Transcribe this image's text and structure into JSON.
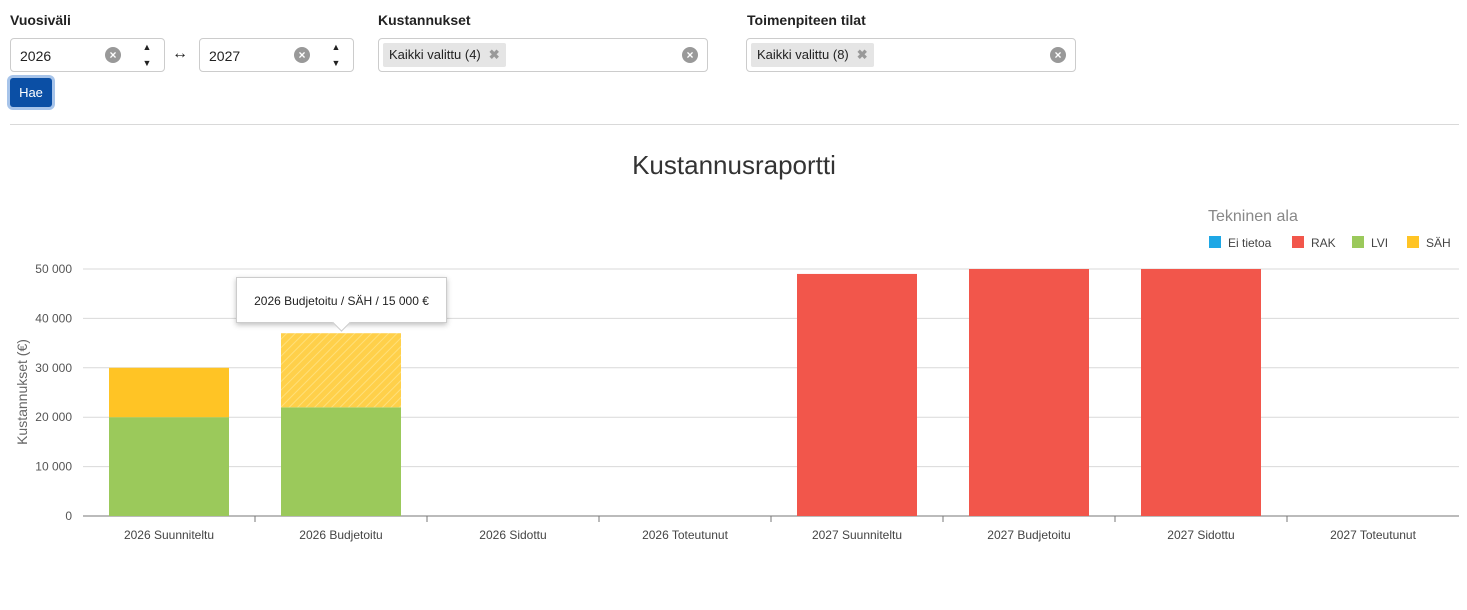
{
  "filters": {
    "year_range": {
      "label": "Vuosiväli",
      "from": "2026",
      "to": "2027",
      "separator": "↔"
    },
    "costs": {
      "label": "Kustannukset",
      "chip": "Kaikki valittu (4)"
    },
    "states": {
      "label": "Toimenpiteen tilat",
      "chip": "Kaikki valittu (8)"
    },
    "search_button": "Hae"
  },
  "chart_data": {
    "type": "bar",
    "stacked": true,
    "title": "Kustannusraportti",
    "ylabel": "Kustannukset (€)",
    "xlabel": "",
    "ylim": [
      0,
      50000
    ],
    "yticks": [
      "0",
      "10 000",
      "20 000",
      "30 000",
      "40 000",
      "50 000"
    ],
    "legend_title": "Tekninen ala",
    "legend_position": "top-right",
    "grid": true,
    "categories": [
      "2026 Suunniteltu",
      "2026 Budjetoitu",
      "2026 Sidottu",
      "2026 Toteutunut",
      "2027 Suunniteltu",
      "2027 Budjetoitu",
      "2027 Sidottu",
      "2027 Toteutunut"
    ],
    "series": [
      {
        "name": "Ei tietoa",
        "color": "#1ea7e5",
        "values": [
          0,
          0,
          0,
          0,
          0,
          0,
          0,
          0
        ]
      },
      {
        "name": "RAK",
        "color": "#f2564b",
        "values": [
          0,
          0,
          0,
          0,
          49000,
          50000,
          50000,
          0
        ]
      },
      {
        "name": "LVI",
        "color": "#9bc95b",
        "values": [
          20000,
          22000,
          0,
          0,
          0,
          0,
          0,
          0
        ]
      },
      {
        "name": "SÄH",
        "color": "#ffc425",
        "values": [
          10000,
          15000,
          0,
          0,
          0,
          0,
          0,
          0
        ]
      }
    ],
    "highlight": {
      "category": 1,
      "series": 3
    },
    "tooltip": "2026 Budjetoitu / SÄH / 15 000 €"
  }
}
